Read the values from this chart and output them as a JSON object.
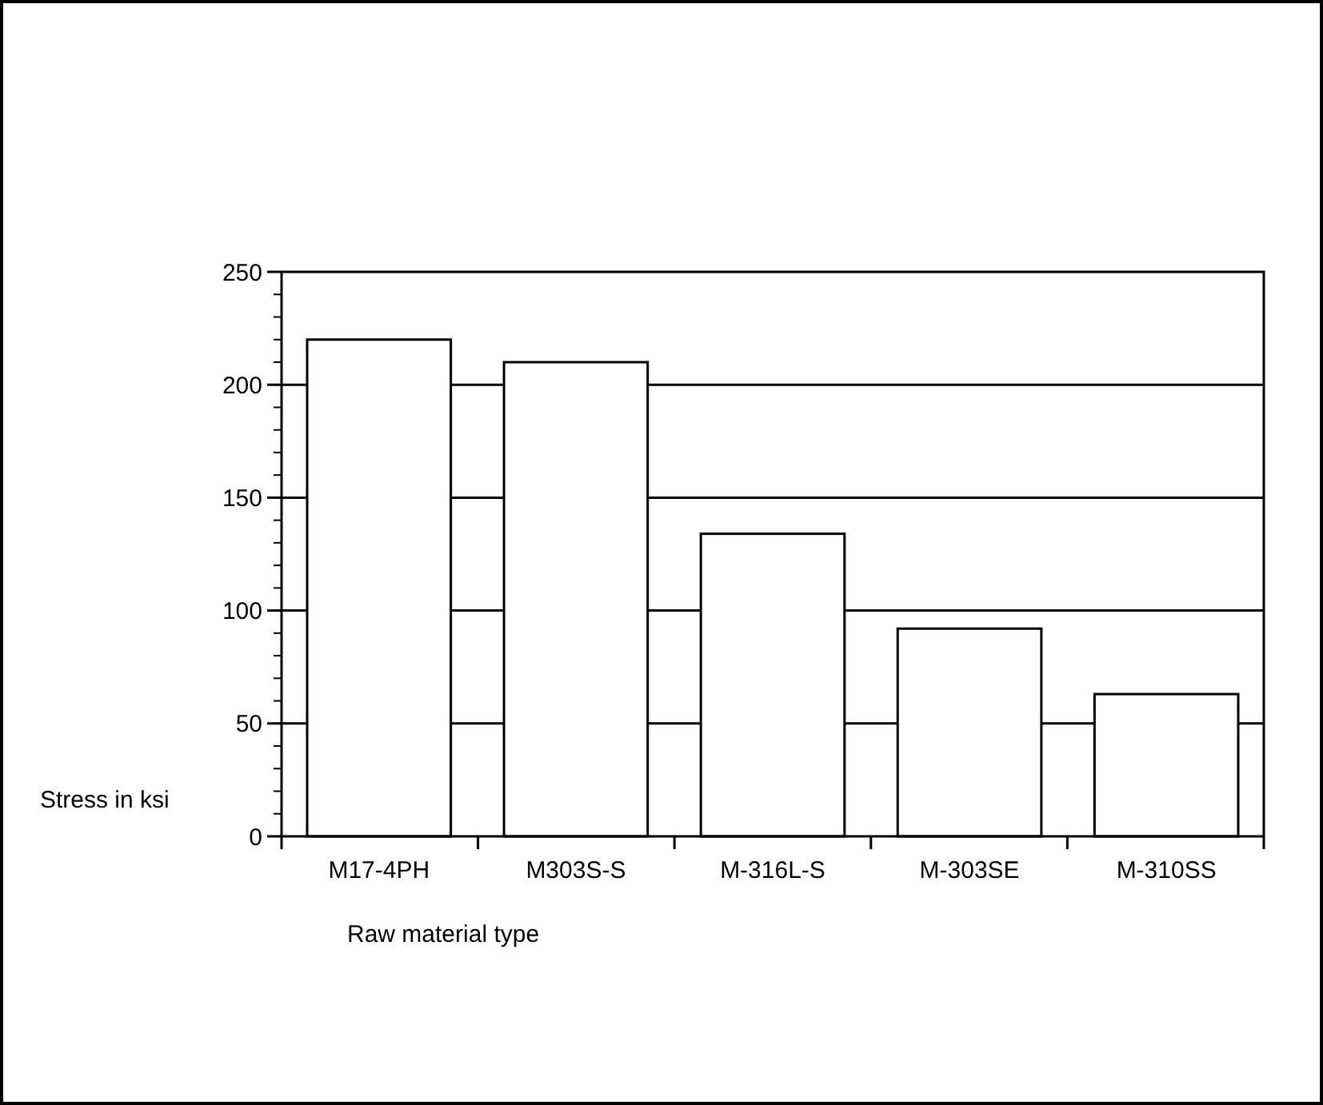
{
  "chart_data": {
    "type": "bar",
    "xlabel": "Raw material type",
    "ylabel": "Stress in ksi",
    "categories": [
      "M17-4PH",
      "M303S-S",
      "M-316L-S",
      "M-303SE",
      "M-310SS"
    ],
    "values": [
      220,
      210,
      134,
      92,
      63
    ],
    "color": "#ffffff",
    "ylim": [
      0,
      250
    ],
    "yticks": [
      0,
      50,
      100,
      150,
      200,
      250
    ],
    "grid": "y"
  }
}
